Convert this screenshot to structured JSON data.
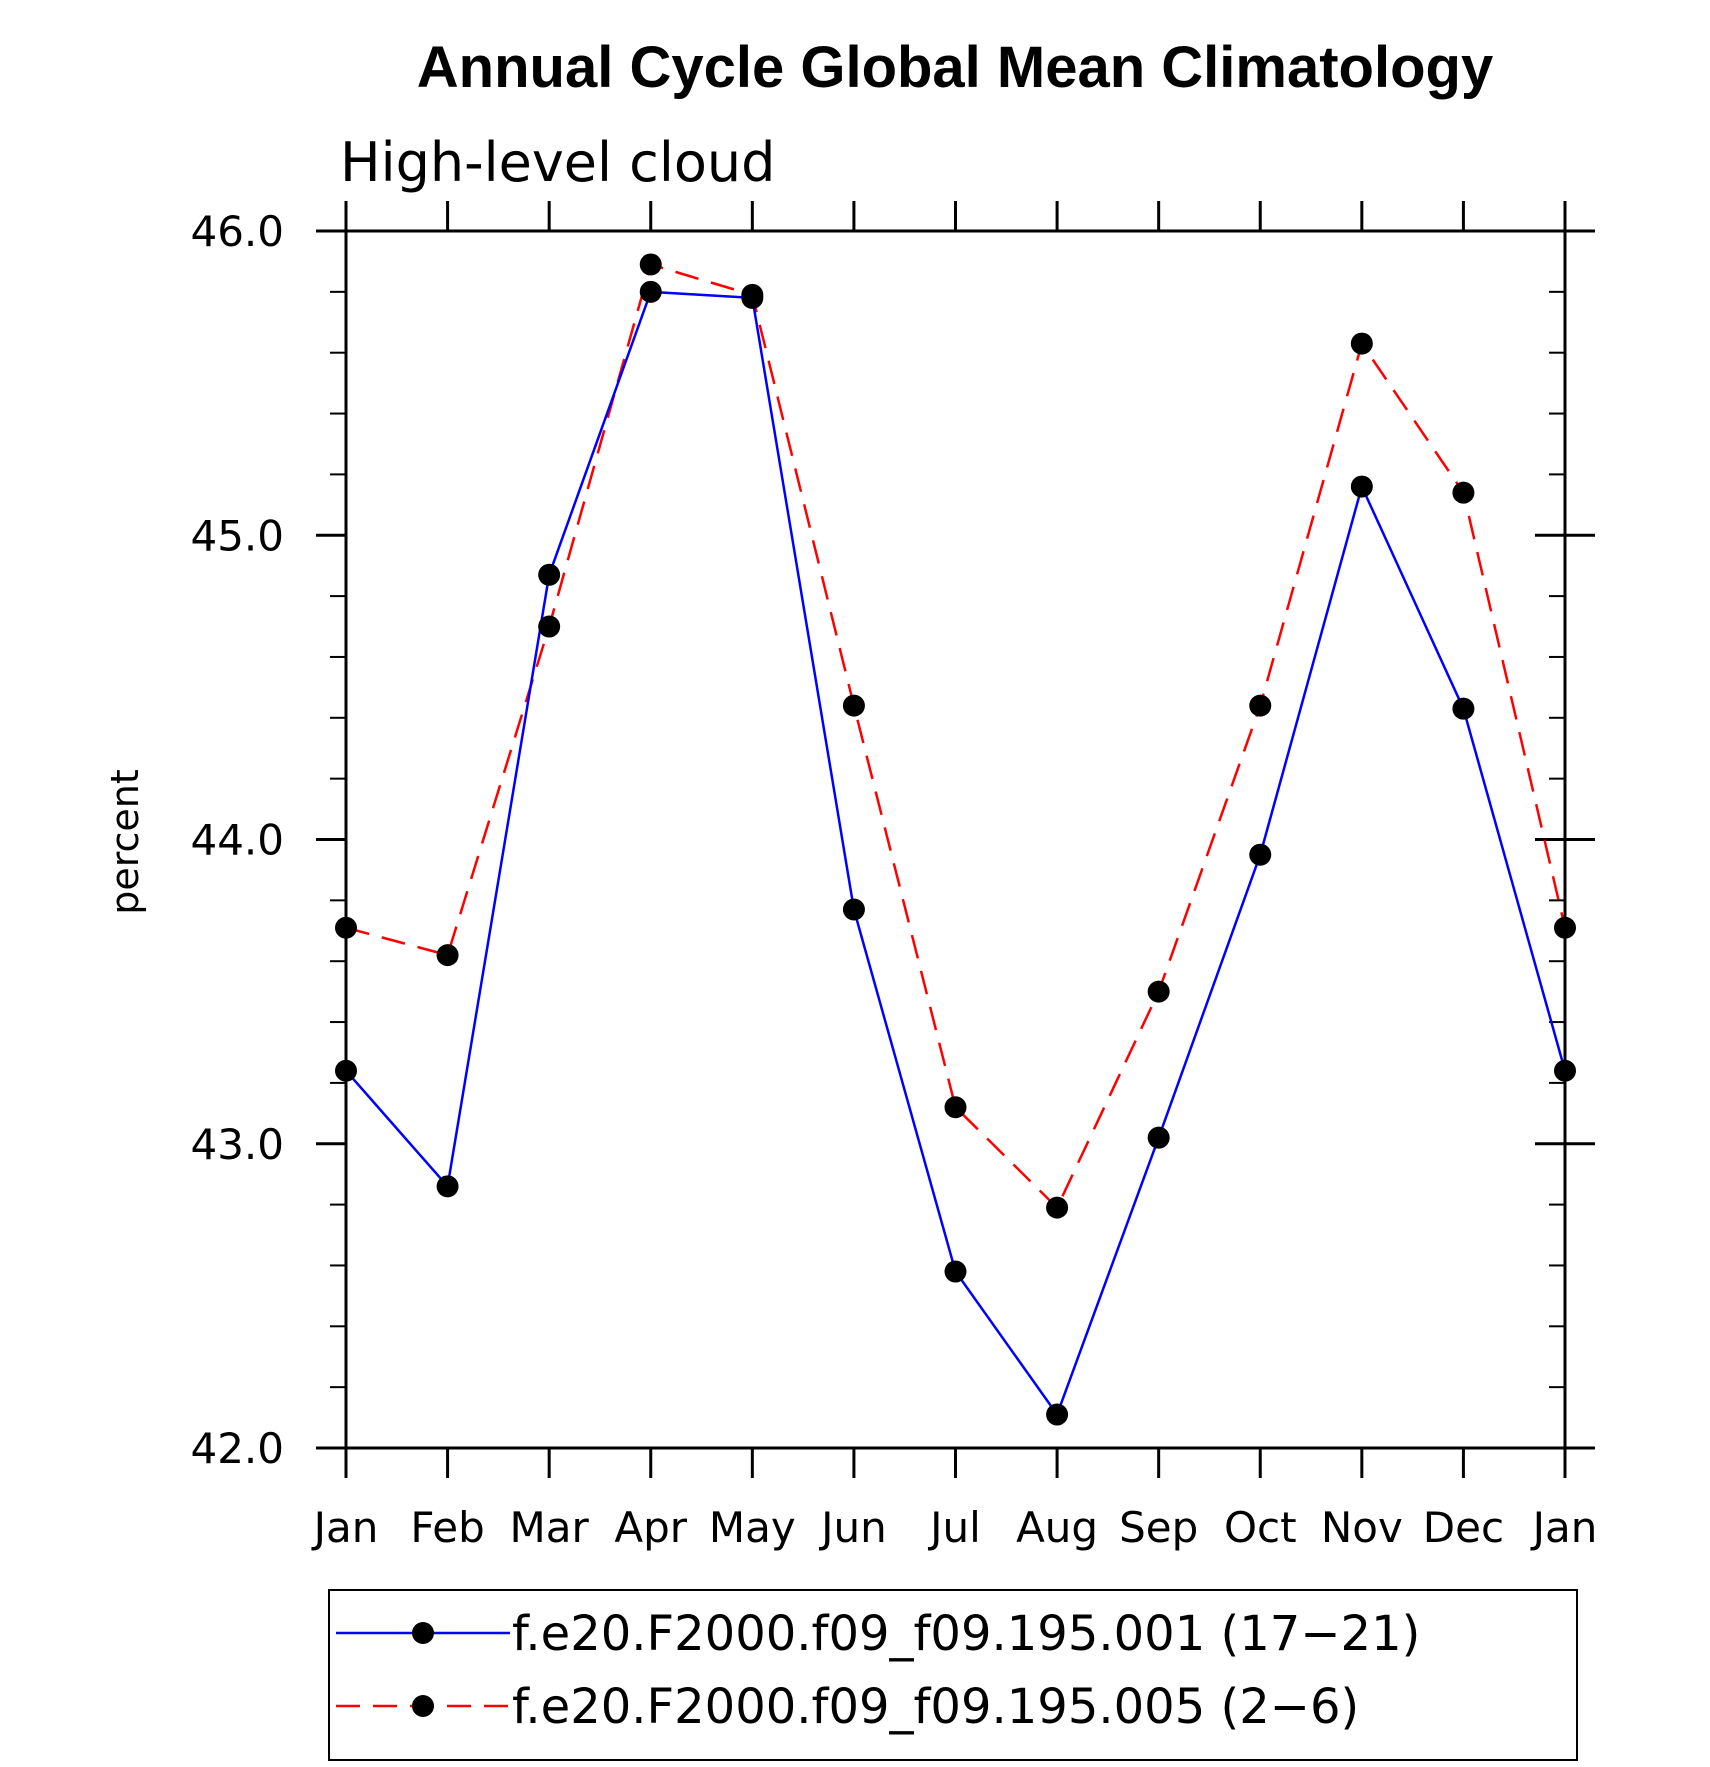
{
  "chart_data": {
    "type": "line",
    "title": "Annual Cycle Global Mean Climatology",
    "subtitle": "High-level cloud",
    "ylabel": "percent",
    "xlabel": "",
    "categories": [
      "Jan",
      "Feb",
      "Mar",
      "Apr",
      "May",
      "Jun",
      "Jul",
      "Aug",
      "Sep",
      "Oct",
      "Nov",
      "Dec",
      "Jan"
    ],
    "ylim": [
      42.0,
      46.0
    ],
    "yticks": [
      "42.0",
      "43.0",
      "44.0",
      "45.0",
      "46.0"
    ],
    "grid": false,
    "legend_position": "bottom",
    "series": [
      {
        "name": "f.e20.F2000.f09_f09.195.001 (17−21)",
        "color": "#0000ff",
        "line_style": "solid",
        "marker": "filled-circle",
        "values": [
          43.24,
          42.86,
          44.87,
          45.8,
          45.78,
          43.77,
          42.58,
          42.11,
          43.02,
          43.95,
          45.16,
          44.43,
          43.24
        ]
      },
      {
        "name": "f.e20.F2000.f09_f09.195.005 (2−6)",
        "color": "#ff0000",
        "line_style": "dashed",
        "marker": "filled-circle",
        "values": [
          43.71,
          43.62,
          44.7,
          45.89,
          45.79,
          44.44,
          43.12,
          42.79,
          43.5,
          44.44,
          45.63,
          45.14,
          43.71
        ]
      }
    ]
  }
}
